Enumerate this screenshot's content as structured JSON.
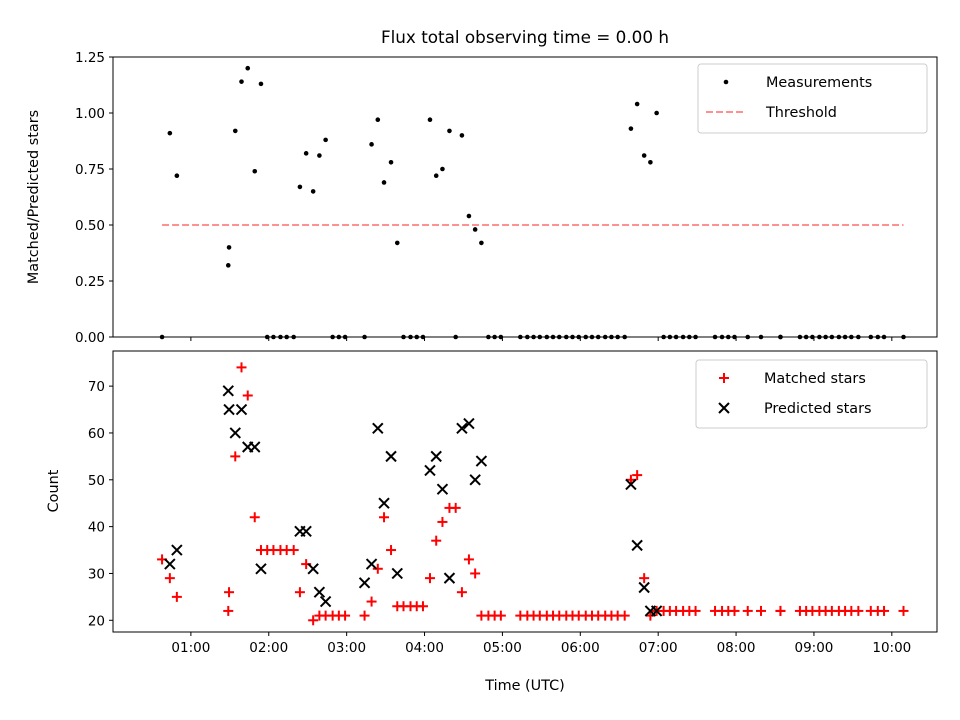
{
  "figure": {
    "title": "Flux total observing time = 0.00 h",
    "xlabel": "Time (UTC)"
  },
  "chart_data": [
    {
      "type": "scatter",
      "ylabel": "Matched/Predicted stars",
      "xlim": [
        0.0,
        10.58
      ],
      "ylim": [
        0,
        1.25
      ],
      "yticks": [
        "0.00",
        "0.25",
        "0.50",
        "0.75",
        "1.00",
        "1.25"
      ],
      "xticks_shown": false,
      "legend": {
        "placement": "top-right",
        "entries": [
          "Measurements",
          "Threshold"
        ]
      },
      "series": [
        {
          "name": "Measurements",
          "marker": "dot",
          "color": "#000000",
          "x": [
            0.63,
            0.73,
            0.82,
            1.48,
            1.49,
            1.57,
            1.65,
            1.73,
            1.82,
            1.9,
            1.98,
            2.06,
            2.15,
            2.23,
            2.32,
            2.4,
            2.48,
            2.57,
            2.65,
            2.73,
            2.82,
            2.9,
            2.98,
            3.23,
            3.32,
            3.4,
            3.48,
            3.57,
            3.65,
            3.73,
            3.82,
            3.9,
            3.98,
            4.07,
            4.15,
            4.23,
            4.32,
            4.4,
            4.48,
            4.57,
            4.65,
            4.73,
            4.82,
            4.9,
            4.98,
            5.23,
            5.32,
            5.4,
            5.48,
            5.57,
            5.65,
            5.73,
            5.82,
            5.9,
            5.98,
            6.07,
            6.15,
            6.23,
            6.32,
            6.4,
            6.48,
            6.57,
            6.65,
            6.73,
            6.82,
            6.9,
            6.98,
            7.07,
            7.15,
            7.23,
            7.32,
            7.4,
            7.48,
            7.73,
            7.82,
            7.9,
            7.98,
            8.15,
            8.32,
            8.57,
            8.57,
            8.82,
            8.9,
            8.98,
            9.07,
            9.15,
            9.23,
            9.32,
            9.4,
            9.48,
            9.57,
            9.73,
            9.82,
            9.9,
            10.15
          ],
          "y": [
            0.0,
            0.91,
            0.72,
            0.32,
            0.4,
            0.92,
            1.14,
            1.2,
            0.74,
            1.13,
            0.0,
            0.0,
            0.0,
            0.0,
            0.0,
            0.67,
            0.82,
            0.65,
            0.81,
            0.88,
            0.0,
            0.0,
            0.0,
            0.0,
            0.86,
            0.97,
            0.69,
            0.78,
            0.42,
            0.0,
            0.0,
            0.0,
            0.0,
            0.97,
            0.72,
            0.75,
            0.92,
            0.0,
            0.9,
            0.54,
            0.48,
            0.42,
            0.0,
            0.0,
            0.0,
            0.0,
            0.0,
            0.0,
            0.0,
            0.0,
            0.0,
            0.0,
            0.0,
            0.0,
            0.0,
            0.0,
            0.0,
            0.0,
            0.0,
            0.0,
            0.0,
            0.0,
            0.93,
            1.04,
            0.81,
            0.78,
            1.0,
            0.0,
            0.0,
            0.0,
            0.0,
            0.0,
            0.0,
            0.0,
            0.0,
            0.0,
            0.0,
            0.0,
            0.0,
            0.0,
            0.0,
            0.0,
            0.0,
            0.0,
            0.0,
            0.0,
            0.0,
            0.0,
            0.0,
            0.0,
            0.0,
            0.0,
            0.0,
            0.0,
            0.0
          ]
        },
        {
          "name": "Threshold",
          "style": "dashed",
          "color": "#ff8080",
          "x": [
            0.63,
            10.15
          ],
          "y": [
            0.5,
            0.5
          ]
        }
      ]
    },
    {
      "type": "scatter",
      "ylabel": "Count",
      "xlim": [
        0.0,
        10.58
      ],
      "ylim": [
        17.5,
        77.5
      ],
      "yticks": [
        "20",
        "30",
        "40",
        "50",
        "60",
        "70"
      ],
      "xticks": [
        "01:00",
        "02:00",
        "03:00",
        "04:00",
        "05:00",
        "06:00",
        "07:00",
        "08:00",
        "09:00",
        "10:00"
      ],
      "legend": {
        "placement": "top-right",
        "entries": [
          "Matched stars",
          "Predicted stars"
        ]
      },
      "series": [
        {
          "name": "Matched stars",
          "marker": "plus",
          "color": "#ff0000",
          "x": [
            0.63,
            0.73,
            0.82,
            1.48,
            1.49,
            1.57,
            1.65,
            1.73,
            1.82,
            1.9,
            1.98,
            2.06,
            2.15,
            2.23,
            2.32,
            2.4,
            2.48,
            2.57,
            2.65,
            2.73,
            2.82,
            2.9,
            2.98,
            3.23,
            3.32,
            3.4,
            3.48,
            3.57,
            3.65,
            3.73,
            3.82,
            3.9,
            3.98,
            4.07,
            4.15,
            4.23,
            4.32,
            4.4,
            4.48,
            4.57,
            4.65,
            4.73,
            4.82,
            4.9,
            4.98,
            5.23,
            5.32,
            5.4,
            5.48,
            5.57,
            5.65,
            5.73,
            5.82,
            5.9,
            5.98,
            6.07,
            6.15,
            6.23,
            6.32,
            6.4,
            6.48,
            6.57,
            6.65,
            6.73,
            6.82,
            6.9,
            6.98,
            7.07,
            7.15,
            7.23,
            7.32,
            7.4,
            7.48,
            7.73,
            7.82,
            7.9,
            7.98,
            8.15,
            8.32,
            8.57,
            8.57,
            8.82,
            8.9,
            8.98,
            9.07,
            9.15,
            9.23,
            9.32,
            9.4,
            9.48,
            9.57,
            9.73,
            9.82,
            9.9,
            10.15
          ],
          "y": [
            33,
            29,
            25,
            22,
            26,
            55,
            74,
            68,
            42,
            35,
            35,
            35,
            35,
            35,
            35,
            26,
            32,
            20,
            21,
            21,
            21,
            21,
            21,
            21,
            24,
            31,
            42,
            35,
            23,
            23,
            23,
            23,
            23,
            29,
            37,
            41,
            44,
            44,
            26,
            33,
            30,
            21,
            21,
            21,
            21,
            21,
            21,
            21,
            21,
            21,
            21,
            21,
            21,
            21,
            21,
            21,
            21,
            21,
            21,
            21,
            21,
            21,
            50,
            51,
            29,
            21,
            22,
            22,
            22,
            22,
            22,
            22,
            22,
            22,
            22,
            22,
            22,
            22,
            22,
            22,
            22,
            22,
            22,
            22,
            22,
            22,
            22,
            22,
            22,
            22,
            22,
            22,
            22,
            22,
            22
          ]
        },
        {
          "name": "Predicted stars",
          "marker": "x",
          "color": "#000000",
          "x": [
            0.73,
            0.82,
            1.48,
            1.49,
            1.57,
            1.65,
            1.73,
            1.82,
            1.9,
            2.4,
            2.48,
            2.57,
            2.65,
            2.73,
            3.23,
            3.32,
            3.4,
            3.48,
            3.57,
            3.65,
            4.07,
            4.15,
            4.23,
            4.32,
            4.48,
            4.57,
            4.65,
            4.73,
            6.65,
            6.73,
            6.82,
            6.9,
            6.98
          ],
          "y": [
            32,
            35,
            69,
            65,
            60,
            65,
            57,
            57,
            31,
            39,
            39,
            31,
            26,
            24,
            28,
            32,
            61,
            45,
            55,
            30,
            52,
            55,
            48,
            29,
            61,
            62,
            50,
            54,
            49,
            36,
            27,
            22,
            22
          ]
        }
      ]
    }
  ]
}
